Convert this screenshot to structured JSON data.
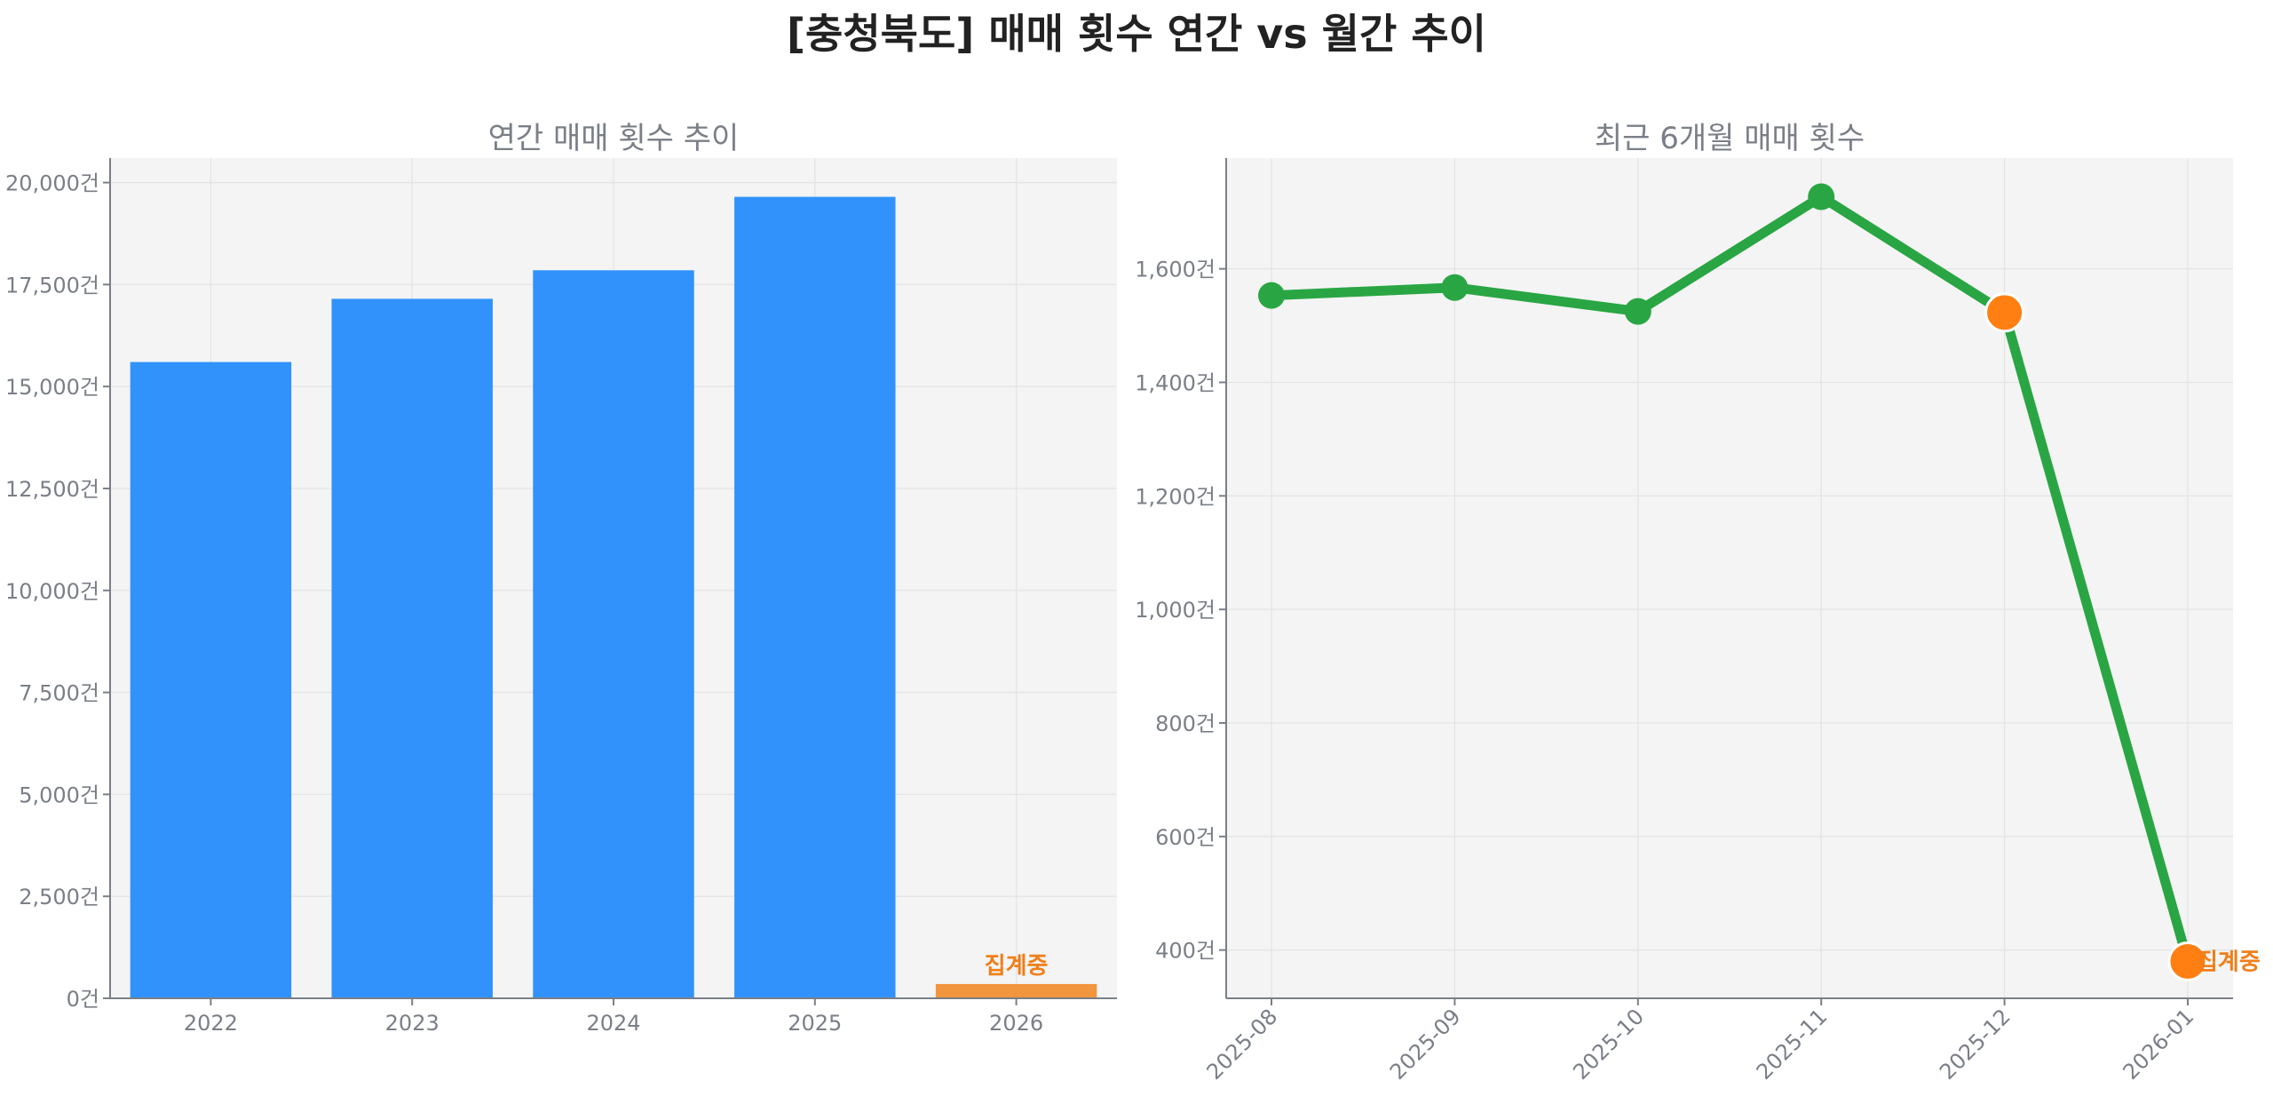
{
  "title": "[충청북도] 매매 횟수 연간 vs 월간 추이",
  "colors": {
    "bar": "#3192fb",
    "bar_pending": "#f2953f",
    "line": "#29a643",
    "pending_marker": "#ff7f12",
    "note": "#f07f1a",
    "panel_bg": "#f4f4f4"
  },
  "chart_data": [
    {
      "type": "bar",
      "title": "연간 매매 횟수 추이",
      "xlabel": "",
      "ylabel": "",
      "categories": [
        "2022",
        "2023",
        "2024",
        "2025",
        "2026"
      ],
      "values": [
        15600,
        17150,
        17850,
        19650,
        350
      ],
      "pending_index": 4,
      "pending_label": "집계중",
      "ylim": [
        0,
        20600
      ],
      "yticks": [
        0,
        2500,
        5000,
        7500,
        10000,
        12500,
        15000,
        17500,
        20000
      ],
      "ytick_labels": [
        "0건",
        "2,500건",
        "5,000건",
        "7,500건",
        "10,000건",
        "12,500건",
        "15,000건",
        "17,500건",
        "20,000건"
      ],
      "grid": true
    },
    {
      "type": "line",
      "title": "최근 6개월 매매 횟수",
      "xlabel": "",
      "ylabel": "",
      "categories": [
        "2025-08",
        "2025-09",
        "2025-10",
        "2025-11",
        "2025-12",
        "2026-01"
      ],
      "values": [
        1553,
        1567,
        1525,
        1727,
        1523,
        380
      ],
      "highlight_indices": [
        4,
        5
      ],
      "pending_index": 5,
      "pending_label": "집계중",
      "ylim": [
        315,
        1795
      ],
      "yticks": [
        400,
        600,
        800,
        1000,
        1200,
        1400,
        1600
      ],
      "ytick_labels": [
        "400건",
        "600건",
        "800건",
        "1,000건",
        "1,200건",
        "1,400건",
        "1,600건"
      ],
      "grid": true
    }
  ]
}
